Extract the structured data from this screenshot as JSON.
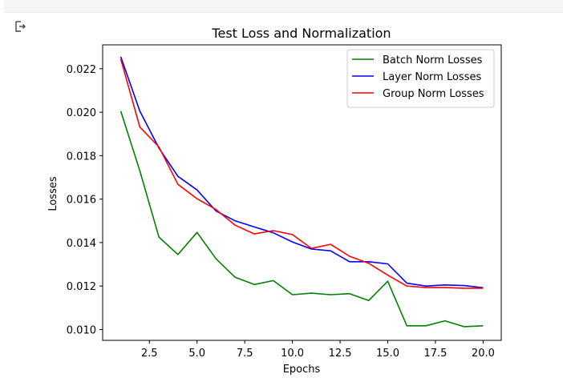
{
  "chart_data": {
    "type": "line",
    "title": "Test Loss and Normalization",
    "xlabel": "Epochs",
    "ylabel": "Losses",
    "xlim": [
      0.05,
      20.95
    ],
    "ylim": [
      0.0095,
      0.0231
    ],
    "x_ticks": [
      2.5,
      5.0,
      7.5,
      10.0,
      12.5,
      15.0,
      17.5,
      20.0
    ],
    "x_tick_labels": [
      "2.5",
      "5.0",
      "7.5",
      "10.0",
      "12.5",
      "15.0",
      "17.5",
      "20.0"
    ],
    "y_ticks": [
      0.01,
      0.012,
      0.014,
      0.016,
      0.018,
      0.02,
      0.022
    ],
    "y_tick_labels": [
      "0.010",
      "0.012",
      "0.014",
      "0.016",
      "0.018",
      "0.020",
      "0.022"
    ],
    "grid": false,
    "legend_position": "top-right",
    "x": [
      1,
      2,
      3,
      4,
      5,
      6,
      7,
      8,
      9,
      10,
      11,
      12,
      13,
      14,
      15,
      16,
      17,
      18,
      19,
      20
    ],
    "series": [
      {
        "name": "Batch Norm Losses",
        "color": "#008000",
        "values": [
          0.02005,
          0.0173,
          0.01425,
          0.01345,
          0.01447,
          0.01325,
          0.0124,
          0.01207,
          0.01225,
          0.0116,
          0.01167,
          0.0116,
          0.01165,
          0.01133,
          0.01222,
          0.01017,
          0.01017,
          0.0104,
          0.01013,
          0.01017
        ]
      },
      {
        "name": "Layer Norm Losses",
        "color": "#0000ff",
        "values": [
          0.02255,
          0.02005,
          0.01835,
          0.01705,
          0.01642,
          0.01545,
          0.015,
          0.01472,
          0.01445,
          0.01403,
          0.0137,
          0.01362,
          0.01312,
          0.01312,
          0.01302,
          0.01213,
          0.012,
          0.01205,
          0.01202,
          0.01192
        ]
      },
      {
        "name": "Group Norm Losses",
        "color": "#ff0000",
        "values": [
          0.02245,
          0.01932,
          0.0184,
          0.01668,
          0.01602,
          0.01552,
          0.0148,
          0.0144,
          0.01455,
          0.01437,
          0.01373,
          0.01392,
          0.01337,
          0.01305,
          0.0125,
          0.012,
          0.01193,
          0.01193,
          0.0119,
          0.0119
        ]
      }
    ]
  }
}
